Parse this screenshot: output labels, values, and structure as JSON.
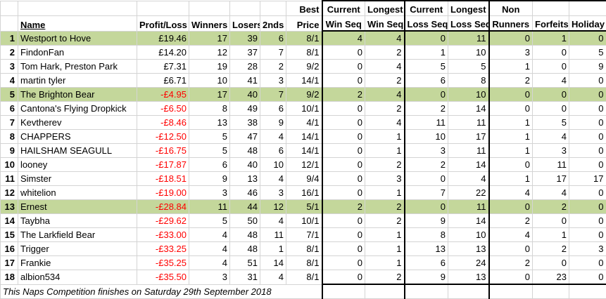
{
  "headers": {
    "name": "Name",
    "profit_loss": "Profit/Loss",
    "winners": "Winners",
    "losers": "Losers",
    "seconds": "2nds",
    "best_price": [
      "Best",
      "Price"
    ],
    "current_win_seq": [
      "Current",
      "Win Seq"
    ],
    "longest_win_seq": [
      "Longest",
      "Win Seq"
    ],
    "current_loss_seq": [
      "Current",
      "Loss Seq"
    ],
    "longest_loss_seq": [
      "Longest",
      "Loss Seq"
    ],
    "non_runners": [
      "Non",
      "Runners"
    ],
    "forfeits": "Forfeits",
    "holiday": "Holiday"
  },
  "rows": [
    {
      "rank": "1",
      "name": "Westport to Hove",
      "pl": "£19.46",
      "neg": false,
      "w": "17",
      "l": "39",
      "s": "6",
      "bp": "8/1",
      "cws": "4",
      "lws": "4",
      "cls": "0",
      "lls": "11",
      "nr": "0",
      "f": "1",
      "h": "0",
      "hl": true
    },
    {
      "rank": "2",
      "name": "FindonFan",
      "pl": "£14.20",
      "neg": false,
      "w": "12",
      "l": "37",
      "s": "7",
      "bp": "8/1",
      "cws": "0",
      "lws": "2",
      "cls": "1",
      "lls": "10",
      "nr": "3",
      "f": "0",
      "h": "5",
      "hl": false
    },
    {
      "rank": "3",
      "name": "Tom Hark, Preston Park",
      "pl": "£7.31",
      "neg": false,
      "w": "19",
      "l": "28",
      "s": "2",
      "bp": "9/2",
      "cws": "0",
      "lws": "4",
      "cls": "5",
      "lls": "5",
      "nr": "1",
      "f": "0",
      "h": "9",
      "hl": false
    },
    {
      "rank": "4",
      "name": "martin tyler",
      "pl": "£6.71",
      "neg": false,
      "w": "10",
      "l": "41",
      "s": "3",
      "bp": "14/1",
      "cws": "0",
      "lws": "2",
      "cls": "6",
      "lls": "8",
      "nr": "2",
      "f": "4",
      "h": "0",
      "hl": false
    },
    {
      "rank": "5",
      "name": "The Brighton Bear",
      "pl": "-£4.95",
      "neg": true,
      "w": "17",
      "l": "40",
      "s": "7",
      "bp": "9/2",
      "cws": "2",
      "lws": "4",
      "cls": "0",
      "lls": "10",
      "nr": "0",
      "f": "0",
      "h": "0",
      "hl": true
    },
    {
      "rank": "6",
      "name": "Cantona's Flying Dropkick",
      "pl": "-£6.50",
      "neg": true,
      "w": "8",
      "l": "49",
      "s": "6",
      "bp": "10/1",
      "cws": "0",
      "lws": "2",
      "cls": "2",
      "lls": "14",
      "nr": "0",
      "f": "0",
      "h": "0",
      "hl": false
    },
    {
      "rank": "7",
      "name": "Kevtherev",
      "pl": "-£8.46",
      "neg": true,
      "w": "13",
      "l": "38",
      "s": "9",
      "bp": "4/1",
      "cws": "0",
      "lws": "4",
      "cls": "11",
      "lls": "11",
      "nr": "1",
      "f": "5",
      "h": "0",
      "hl": false
    },
    {
      "rank": "8",
      "name": "CHAPPERS",
      "pl": "-£12.50",
      "neg": true,
      "w": "5",
      "l": "47",
      "s": "4",
      "bp": "14/1",
      "cws": "0",
      "lws": "1",
      "cls": "10",
      "lls": "17",
      "nr": "1",
      "f": "4",
      "h": "0",
      "hl": false
    },
    {
      "rank": "9",
      "name": "HAILSHAM SEAGULL",
      "pl": "-£16.75",
      "neg": true,
      "w": "5",
      "l": "48",
      "s": "6",
      "bp": "14/1",
      "cws": "0",
      "lws": "1",
      "cls": "3",
      "lls": "11",
      "nr": "1",
      "f": "3",
      "h": "0",
      "hl": false
    },
    {
      "rank": "10",
      "name": "looney",
      "pl": "-£17.87",
      "neg": true,
      "w": "6",
      "l": "40",
      "s": "10",
      "bp": "12/1",
      "cws": "0",
      "lws": "2",
      "cls": "2",
      "lls": "14",
      "nr": "0",
      "f": "11",
      "h": "0",
      "hl": false
    },
    {
      "rank": "11",
      "name": "Simster",
      "pl": "-£18.51",
      "neg": true,
      "w": "9",
      "l": "13",
      "s": "4",
      "bp": "9/4",
      "cws": "0",
      "lws": "3",
      "cls": "0",
      "lls": "4",
      "nr": "1",
      "f": "17",
      "h": "17",
      "hl": false
    },
    {
      "rank": "12",
      "name": "whitelion",
      "pl": "-£19.00",
      "neg": true,
      "w": "3",
      "l": "46",
      "s": "3",
      "bp": "16/1",
      "cws": "0",
      "lws": "1",
      "cls": "7",
      "lls": "22",
      "nr": "4",
      "f": "4",
      "h": "0",
      "hl": false
    },
    {
      "rank": "13",
      "name": "Ernest",
      "pl": "-£28.84",
      "neg": true,
      "w": "11",
      "l": "44",
      "s": "12",
      "bp": "5/1",
      "cws": "2",
      "lws": "2",
      "cls": "0",
      "lls": "11",
      "nr": "0",
      "f": "2",
      "h": "0",
      "hl": true
    },
    {
      "rank": "14",
      "name": "Taybha",
      "pl": "-£29.62",
      "neg": true,
      "w": "5",
      "l": "50",
      "s": "4",
      "bp": "10/1",
      "cws": "0",
      "lws": "2",
      "cls": "9",
      "lls": "14",
      "nr": "2",
      "f": "0",
      "h": "0",
      "hl": false
    },
    {
      "rank": "15",
      "name": "The Larkfield Bear",
      "pl": "-£33.00",
      "neg": true,
      "w": "4",
      "l": "48",
      "s": "11",
      "bp": "7/1",
      "cws": "0",
      "lws": "1",
      "cls": "8",
      "lls": "10",
      "nr": "4",
      "f": "1",
      "h": "0",
      "hl": false
    },
    {
      "rank": "16",
      "name": "Trigger",
      "pl": "-£33.25",
      "neg": true,
      "w": "4",
      "l": "48",
      "s": "1",
      "bp": "8/1",
      "cws": "0",
      "lws": "1",
      "cls": "13",
      "lls": "13",
      "nr": "0",
      "f": "2",
      "h": "3",
      "hl": false
    },
    {
      "rank": "17",
      "name": "Frankie",
      "pl": "-£35.25",
      "neg": true,
      "w": "4",
      "l": "51",
      "s": "14",
      "bp": "8/1",
      "cws": "0",
      "lws": "1",
      "cls": "6",
      "lls": "24",
      "nr": "2",
      "f": "0",
      "h": "0",
      "hl": false
    },
    {
      "rank": "18",
      "name": "albion534",
      "pl": "-£35.50",
      "neg": true,
      "w": "3",
      "l": "31",
      "s": "4",
      "bp": "8/1",
      "cws": "0",
      "lws": "2",
      "cls": "9",
      "lls": "13",
      "nr": "0",
      "f": "23",
      "h": "0",
      "hl": false
    }
  ],
  "footer": "This Naps Competition finishes on Saturday 29th September 2018",
  "colors": {
    "highlight": "#c4d79b",
    "negative": "#ff0000",
    "gridline": "#d4d4d4"
  }
}
